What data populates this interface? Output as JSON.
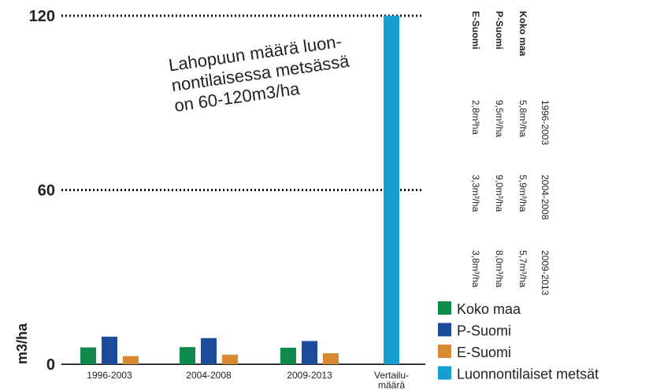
{
  "chart_data": {
    "type": "bar",
    "y_label": "m3/ha",
    "annotation": [
      "Lahopuun määrä luon-",
      "nontilaisessa metsässä",
      "on 60-120m3/ha"
    ],
    "categories": [
      "1996-2003",
      "2004-2008",
      "2009-2013",
      "Vertailu-\nmäärä"
    ],
    "series": [
      {
        "name": "Koko maa",
        "color": "#0e8a4a",
        "values": [
          5.8,
          5.9,
          5.7,
          null
        ]
      },
      {
        "name": "P-Suomi",
        "color": "#1d4b9b",
        "values": [
          9.5,
          9.0,
          8.0,
          null
        ]
      },
      {
        "name": "E-Suomi",
        "color": "#d9892f",
        "values": [
          2.8,
          3.3,
          3.8,
          null
        ]
      },
      {
        "name": "Luonnontilaiset metsät",
        "color": "#169fd0",
        "values": [
          null,
          null,
          null,
          120
        ]
      }
    ],
    "ylim": [
      0,
      120
    ],
    "yticks": [
      0,
      60,
      120
    ],
    "grid": true
  },
  "table": {
    "columns": [
      "1996-2003",
      "2004-2008",
      "2009-2013"
    ],
    "rows": [
      {
        "name": "Koko maa",
        "cells": [
          "5,8m³/ha",
          "5,9m³/ha",
          "5,7m³/ha"
        ]
      },
      {
        "name": "P-Suomi",
        "cells": [
          "9,5m³/ha",
          "9,0m³/ha",
          "8,0m³/ha"
        ]
      },
      {
        "name": "E-Suomi",
        "cells": [
          "2,8m³ha",
          "3,3m³/ha",
          "3,8m³/ha"
        ]
      }
    ]
  }
}
